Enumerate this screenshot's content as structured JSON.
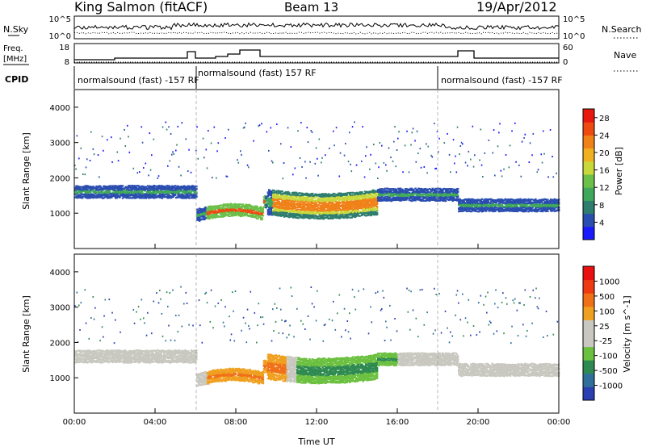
{
  "header": {
    "station": "King Salmon (fitACF)",
    "beam": "Beam 13",
    "date": "19/Apr/2012"
  },
  "noise_panel": {
    "left_label": "N.Sky",
    "left_ticks": [
      "10^5",
      "10^0"
    ],
    "right_label": "N.Search",
    "right_ticks": [
      "10^5",
      "10^0"
    ]
  },
  "freq_panel": {
    "left_label_line1": "Freq.",
    "left_label_line2": "[MHz]",
    "left_ticks": [
      "18",
      "8"
    ],
    "right_label": "Nave",
    "right_ticks": [
      "60",
      "0"
    ]
  },
  "cpid_panel": {
    "label": "CPID",
    "segments": [
      {
        "text": "normalsound (fast) -157 RF"
      },
      {
        "text": "normalsound (fast) 157 RF"
      },
      {
        "text": "normalsound (fast) -157 RF"
      }
    ]
  },
  "x_axis": {
    "label": "Time UT",
    "ticks": [
      "00:00",
      "04:00",
      "08:00",
      "12:00",
      "16:00",
      "20:00",
      "00:00"
    ]
  },
  "chart_data": [
    {
      "type": "heatmap",
      "title": "",
      "xlabel": "Time UT",
      "ylabel": "Slant Range [km]",
      "x_ticks": [
        "00:00",
        "04:00",
        "08:00",
        "12:00",
        "16:00",
        "20:00",
        "00:00"
      ],
      "y_ticks": [
        "1000",
        "2000",
        "3000",
        "4000"
      ],
      "ylim": [
        0,
        4500
      ],
      "colorbar": {
        "label": "Power [dB]",
        "ticks": [
          "4",
          "8",
          "12",
          "16",
          "20",
          "24",
          "28"
        ],
        "range": [
          0,
          30
        ],
        "colors": [
          "#1a1aff",
          "#2a4db0",
          "#2e7d6e",
          "#3fa85a",
          "#6cc04a",
          "#c8d83a",
          "#f0b020",
          "#f08018",
          "#ee4a10",
          "#e81810"
        ]
      }
    },
    {
      "type": "heatmap",
      "title": "",
      "xlabel": "Time UT",
      "ylabel": "Slant Range [km]",
      "x_ticks": [
        "00:00",
        "04:00",
        "08:00",
        "12:00",
        "16:00",
        "20:00",
        "00:00"
      ],
      "y_ticks": [
        "1000",
        "2000",
        "3000",
        "4000"
      ],
      "ylim": [
        0,
        4500
      ],
      "colorbar": {
        "label": "Velocity [m s^-1]",
        "ticks": [
          "1000",
          "500",
          "100",
          "25",
          "-25",
          "-100",
          "-500",
          "-1000"
        ],
        "colors": [
          "#2a3fb0",
          "#2f6f9a",
          "#2e8a50",
          "#6cc040",
          "#c8c8c0",
          "#c8c8c0",
          "#f0a020",
          "#f07018",
          "#ee3a10",
          "#e81010"
        ]
      }
    }
  ]
}
